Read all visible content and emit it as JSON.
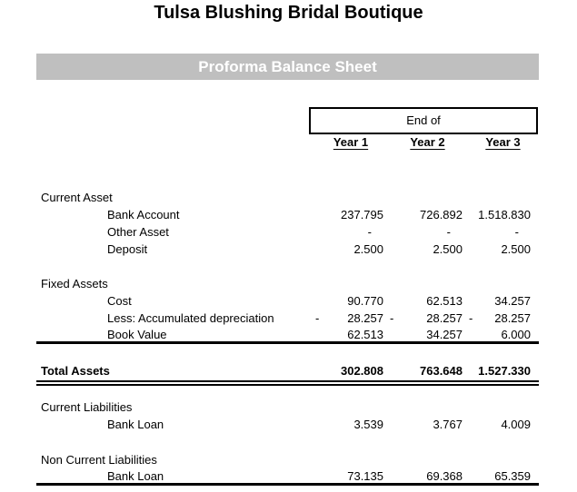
{
  "colors": {
    "banner_background": "#bfbfbf",
    "banner_text": "#ffffff",
    "body_text": "#000000",
    "rule_lines": "#000000"
  },
  "header": {
    "title": "Tulsa Blushing Bridal Boutique",
    "banner": "Proforma Balance Sheet"
  },
  "table": {
    "period_label": "End of",
    "year_columns": [
      "Year 1",
      "Year 2",
      "Year 3"
    ],
    "rows": {
      "current_asset_section": "Current Asset",
      "bank_account": {
        "label": "Bank Account",
        "y1": "237.795",
        "y2": "726.892",
        "y3": "1.518.830"
      },
      "other_asset": {
        "label": "Other Asset",
        "y1": "-",
        "y2": "-",
        "y3": "-"
      },
      "deposit": {
        "label": "Deposit",
        "y1": "2.500",
        "y2": "2.500",
        "y3": "2.500"
      },
      "fixed_assets_section": "Fixed Assets",
      "cost": {
        "label": "Cost",
        "y1": "90.770",
        "y2": "62.513",
        "y3": "34.257"
      },
      "accumulated_depreciation": {
        "label": "Less: Accumulated depreciation",
        "minus": "-",
        "y1": "28.257",
        "y2": "28.257",
        "y3": "28.257"
      },
      "book_value": {
        "label": "Book Value",
        "y1": "62.513",
        "y2": "34.257",
        "y3": "6.000"
      },
      "total_assets": {
        "label": "Total Assets",
        "y1": "302.808",
        "y2": "763.648",
        "y3": "1.527.330"
      },
      "current_liabilities_section": "Current Liabilities",
      "current_bank_loan": {
        "label": "Bank Loan",
        "y1": "3.539",
        "y2": "3.767",
        "y3": "4.009"
      },
      "non_current_liabilities_section": "Non Current Liabilities",
      "non_current_bank_loan": {
        "label": "Bank Loan",
        "y1": "73.135",
        "y2": "69.368",
        "y3": "65.359"
      }
    }
  }
}
